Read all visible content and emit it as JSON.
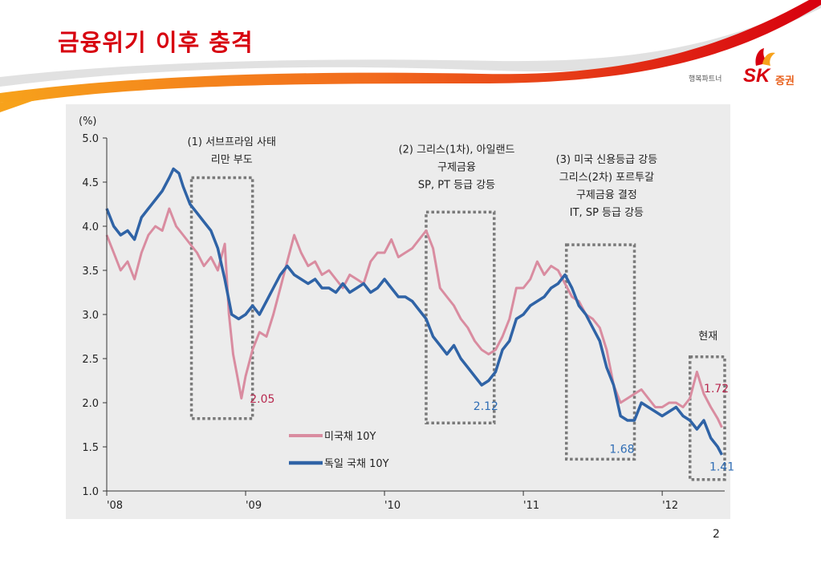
{
  "slide": {
    "title": "금융위기 이후 충격",
    "page_number": "2",
    "brand": {
      "tagline": "행복파트너",
      "logo_text": "SK",
      "logo_sub": "증권"
    }
  },
  "colors": {
    "us": "#d98ca0",
    "de": "#2f63a6",
    "accent": "#d7000f",
    "label_us": "#b8294f",
    "label_de": "#2f6db5"
  },
  "chart_data": {
    "type": "line",
    "ylabel": "(%)",
    "ylim": [
      1.0,
      5.0
    ],
    "yticks": [
      "5.0",
      "4.5",
      "4.0",
      "3.5",
      "3.0",
      "2.5",
      "2.0",
      "1.5",
      "1.0"
    ],
    "xlim": [
      2008.0,
      2012.45
    ],
    "xticks": [
      {
        "value": 2008,
        "label": "'08"
      },
      {
        "value": 2009,
        "label": "'09"
      },
      {
        "value": 2010,
        "label": "'10"
      },
      {
        "value": 2011,
        "label": "'11"
      },
      {
        "value": 2012,
        "label": "'12"
      }
    ],
    "legend_position": "bottom-center",
    "series": [
      {
        "name": "미국채 10Y",
        "x": [
          2008.0,
          2008.05,
          2008.1,
          2008.15,
          2008.2,
          2008.25,
          2008.3,
          2008.35,
          2008.4,
          2008.45,
          2008.5,
          2008.55,
          2008.6,
          2008.65,
          2008.7,
          2008.75,
          2008.8,
          2008.85,
          2008.88,
          2008.91,
          2008.94,
          2008.97,
          2009.0,
          2009.05,
          2009.1,
          2009.15,
          2009.2,
          2009.25,
          2009.3,
          2009.35,
          2009.4,
          2009.45,
          2009.5,
          2009.55,
          2009.6,
          2009.65,
          2009.7,
          2009.75,
          2009.8,
          2009.85,
          2009.9,
          2009.95,
          2010.0,
          2010.05,
          2010.1,
          2010.15,
          2010.2,
          2010.25,
          2010.3,
          2010.35,
          2010.4,
          2010.45,
          2010.5,
          2010.55,
          2010.6,
          2010.65,
          2010.7,
          2010.75,
          2010.8,
          2010.85,
          2010.9,
          2010.95,
          2011.0,
          2011.05,
          2011.1,
          2011.15,
          2011.2,
          2011.25,
          2011.3,
          2011.35,
          2011.4,
          2011.45,
          2011.5,
          2011.55,
          2011.6,
          2011.65,
          2011.7,
          2011.75,
          2011.8,
          2011.85,
          2011.9,
          2011.95,
          2012.0,
          2012.05,
          2012.1,
          2012.15,
          2012.2,
          2012.25,
          2012.3,
          2012.35,
          2012.4,
          2012.43
        ],
        "values": [
          3.9,
          3.7,
          3.5,
          3.6,
          3.4,
          3.7,
          3.9,
          4.0,
          3.95,
          4.2,
          4.0,
          3.9,
          3.8,
          3.7,
          3.55,
          3.65,
          3.5,
          3.8,
          3.0,
          2.55,
          2.3,
          2.05,
          2.3,
          2.6,
          2.8,
          2.75,
          3.0,
          3.3,
          3.6,
          3.9,
          3.7,
          3.55,
          3.6,
          3.45,
          3.5,
          3.4,
          3.3,
          3.45,
          3.4,
          3.35,
          3.6,
          3.7,
          3.7,
          3.85,
          3.65,
          3.7,
          3.75,
          3.85,
          3.95,
          3.75,
          3.3,
          3.2,
          3.1,
          2.95,
          2.85,
          2.7,
          2.6,
          2.55,
          2.6,
          2.75,
          2.95,
          3.3,
          3.3,
          3.4,
          3.6,
          3.45,
          3.55,
          3.5,
          3.35,
          3.2,
          3.15,
          3.0,
          2.95,
          2.85,
          2.6,
          2.2,
          2.0,
          2.05,
          2.1,
          2.15,
          2.05,
          1.95,
          1.95,
          2.0,
          2.0,
          1.95,
          2.05,
          2.35,
          2.1,
          1.95,
          1.82,
          1.72
        ]
      },
      {
        "name": "독일 국채 10Y",
        "x": [
          2008.0,
          2008.05,
          2008.1,
          2008.15,
          2008.2,
          2008.25,
          2008.3,
          2008.35,
          2008.4,
          2008.45,
          2008.48,
          2008.52,
          2008.55,
          2008.6,
          2008.65,
          2008.7,
          2008.75,
          2008.8,
          2008.85,
          2008.9,
          2008.95,
          2009.0,
          2009.05,
          2009.1,
          2009.15,
          2009.2,
          2009.25,
          2009.3,
          2009.35,
          2009.4,
          2009.45,
          2009.5,
          2009.55,
          2009.6,
          2009.65,
          2009.7,
          2009.75,
          2009.8,
          2009.85,
          2009.9,
          2009.95,
          2010.0,
          2010.05,
          2010.1,
          2010.15,
          2010.2,
          2010.25,
          2010.3,
          2010.35,
          2010.4,
          2010.45,
          2010.5,
          2010.55,
          2010.6,
          2010.65,
          2010.7,
          2010.75,
          2010.8,
          2010.85,
          2010.9,
          2010.95,
          2011.0,
          2011.05,
          2011.1,
          2011.15,
          2011.2,
          2011.25,
          2011.3,
          2011.35,
          2011.4,
          2011.45,
          2011.5,
          2011.55,
          2011.6,
          2011.65,
          2011.7,
          2011.75,
          2011.8,
          2011.85,
          2011.9,
          2011.95,
          2012.0,
          2012.05,
          2012.1,
          2012.15,
          2012.2,
          2012.25,
          2012.3,
          2012.35,
          2012.4,
          2012.43
        ],
        "values": [
          4.2,
          4.0,
          3.9,
          3.95,
          3.85,
          4.1,
          4.2,
          4.3,
          4.4,
          4.55,
          4.65,
          4.6,
          4.45,
          4.25,
          4.15,
          4.05,
          3.95,
          3.75,
          3.4,
          3.0,
          2.95,
          3.0,
          3.1,
          3.0,
          3.15,
          3.3,
          3.45,
          3.55,
          3.45,
          3.4,
          3.35,
          3.4,
          3.3,
          3.3,
          3.25,
          3.35,
          3.25,
          3.3,
          3.35,
          3.25,
          3.3,
          3.4,
          3.3,
          3.2,
          3.2,
          3.15,
          3.05,
          2.95,
          2.75,
          2.65,
          2.55,
          2.65,
          2.5,
          2.4,
          2.3,
          2.2,
          2.25,
          2.35,
          2.6,
          2.7,
          2.95,
          3.0,
          3.1,
          3.15,
          3.2,
          3.3,
          3.35,
          3.45,
          3.3,
          3.1,
          3.0,
          2.85,
          2.7,
          2.4,
          2.2,
          1.85,
          1.8,
          1.8,
          2.0,
          1.95,
          1.9,
          1.85,
          1.9,
          1.95,
          1.85,
          1.8,
          1.7,
          1.8,
          1.6,
          1.5,
          1.41
        ]
      }
    ],
    "point_labels": [
      {
        "text": "2.05",
        "series": 0,
        "x": 2009.03,
        "y": 2.0
      },
      {
        "text": "2.12",
        "series": 1,
        "x": 2010.64,
        "y": 1.92
      },
      {
        "text": "1.68",
        "series": 1,
        "x": 2011.62,
        "y": 1.43
      },
      {
        "text": "1.72",
        "series": 0,
        "x": 2012.3,
        "y": 2.12
      },
      {
        "text": "1.41",
        "series": 1,
        "x": 2012.34,
        "y": 1.23
      }
    ],
    "events": [
      {
        "lines": [
          "(1) 서브프라임 사태",
          "리만 부도"
        ],
        "x_from": 2008.61,
        "x_to": 2009.05,
        "y_from": 1.82,
        "y_to": 4.55,
        "label_x": 2008.9,
        "label_top": 4.92
      },
      {
        "lines": [
          "(2) 그리스(1차), 아일랜드",
          "구제금융",
          "SP, PT 등급 강등"
        ],
        "x_from": 2010.3,
        "x_to": 2010.79,
        "y_from": 1.77,
        "y_to": 4.16,
        "label_x": 2010.52,
        "label_top": 4.83
      },
      {
        "lines": [
          "(3) 미국 신용등급 강등",
          "그리스(2차) 포르투갈",
          "구제금융 결정",
          "IT, SP 등급 강등"
        ],
        "x_from": 2011.31,
        "x_to": 2011.8,
        "y_from": 1.36,
        "y_to": 3.79,
        "label_x": 2011.6,
        "label_top": 4.72
      },
      {
        "lines": [
          "현재"
        ],
        "x_from": 2012.2,
        "x_to": 2012.45,
        "y_from": 1.13,
        "y_to": 2.52,
        "label_x": 2012.33,
        "label_top": 2.72
      }
    ]
  }
}
